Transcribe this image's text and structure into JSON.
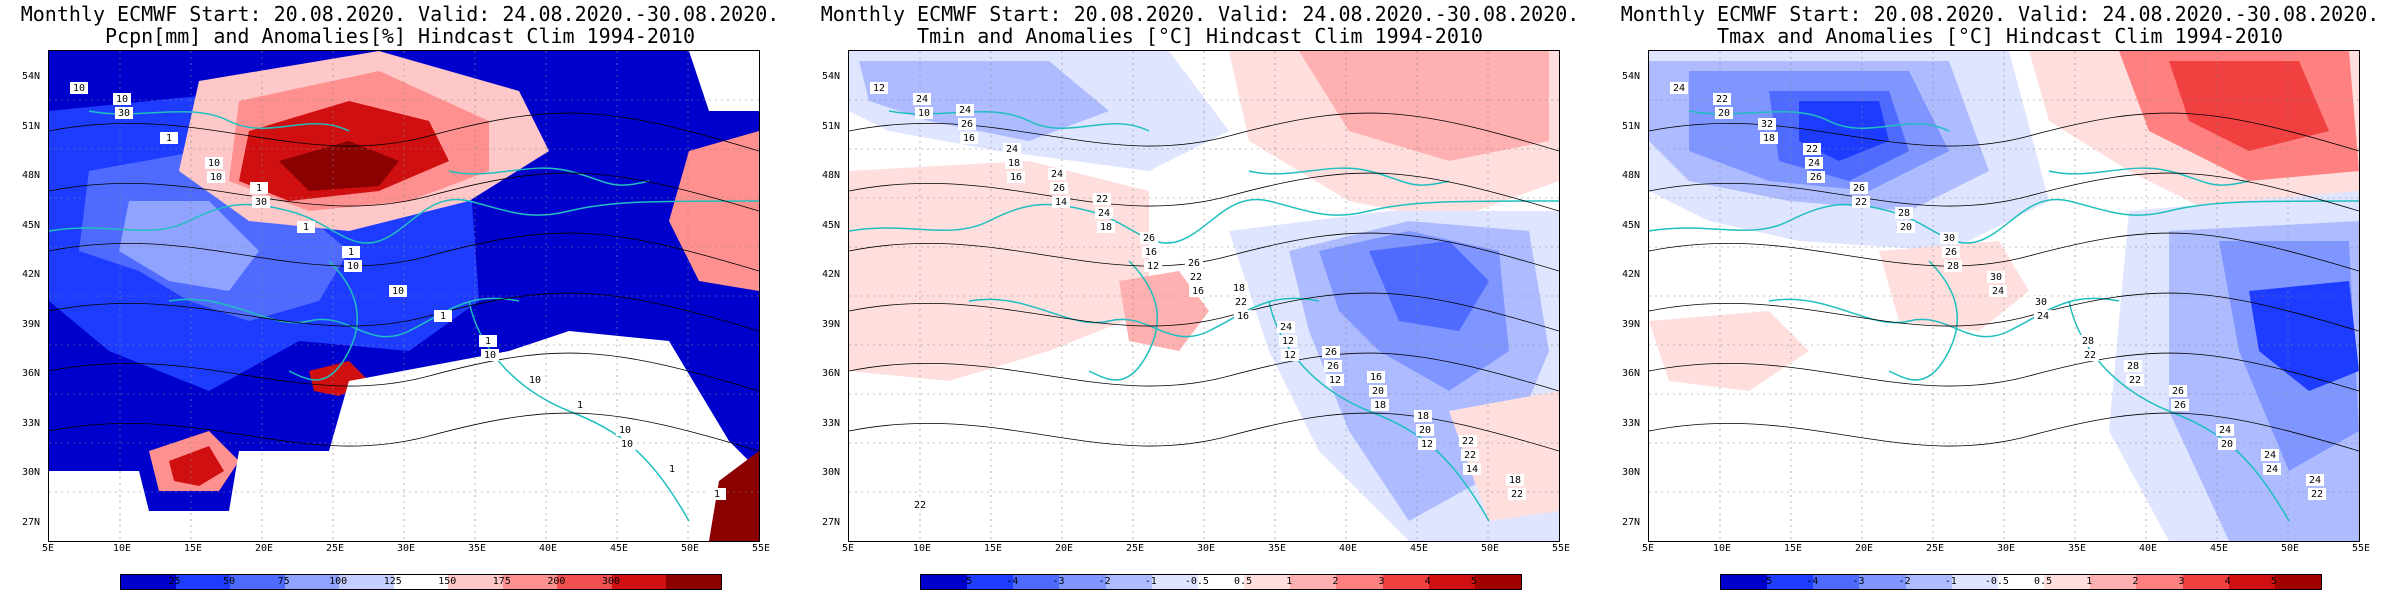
{
  "panels": [
    {
      "id": "pcpn",
      "title_line1": "Monthly ECMWF Start: 20.08.2020. Valid: 24.08.2020.-30.08.2020.",
      "title_line2": "Pcpn[mm] and Anomalies[%] Hindcast Clim 1994-2010",
      "lat_labels": [
        "54N",
        "51N",
        "48N",
        "45N",
        "42N",
        "39N",
        "36N",
        "33N",
        "30N",
        "27N"
      ],
      "lon_labels": [
        "5E",
        "10E",
        "15E",
        "20E",
        "25E",
        "30E",
        "35E",
        "40E",
        "45E",
        "50E",
        "55E"
      ],
      "colorbar_labels": [
        "25",
        "50",
        "75",
        "100",
        "125",
        "150",
        "175",
        "200",
        "300"
      ],
      "colorbar_colors": [
        "#0000cd",
        "#1e3cff",
        "#4f6bff",
        "#8fa3ff",
        "#c5cfff",
        "#ffffff",
        "#ffc8c8",
        "#ff9090",
        "#f05050",
        "#d01010",
        "#8b0000"
      ],
      "contour_labels": [
        "10",
        "10",
        "10",
        "10",
        "10",
        "30",
        "30",
        "10",
        "10",
        "1",
        "1",
        "1",
        "1",
        "1",
        "1",
        "10",
        "1",
        "1",
        "10",
        "10",
        "1"
      ]
    },
    {
      "id": "tmin",
      "title_line1": "Monthly ECMWF Start: 20.08.2020. Valid: 24.08.2020.-30.08.2020.",
      "title_line2": "Tmin and Anomalies [°C] Hindcast Clim 1994-2010",
      "lat_labels": [
        "54N",
        "51N",
        "48N",
        "45N",
        "42N",
        "39N",
        "36N",
        "33N",
        "30N",
        "27N"
      ],
      "lon_labels": [
        "5E",
        "10E",
        "15E",
        "20E",
        "25E",
        "30E",
        "35E",
        "40E",
        "45E",
        "50E",
        "55E"
      ],
      "colorbar_labels": [
        "-5",
        "-4",
        "-3",
        "-2",
        "-1",
        "-0.5",
        "0.5",
        "1",
        "2",
        "3",
        "4",
        "5"
      ],
      "colorbar_colors": [
        "#0000cd",
        "#1e3cff",
        "#4f6bff",
        "#7f95ff",
        "#aebcff",
        "#dfe5ff",
        "#ffffff",
        "#ffdede",
        "#ffb0b0",
        "#ff8080",
        "#f04040",
        "#d01010",
        "#a00000"
      ],
      "contour_labels": [
        "12",
        "16",
        "12",
        "12",
        "12",
        "10",
        "14",
        "16",
        "12",
        "14",
        "16",
        "18",
        "16",
        "18",
        "22",
        "18",
        "16",
        "12",
        "20",
        "24",
        "26",
        "22",
        "26",
        "22",
        "26",
        "24",
        "22",
        "20",
        "18",
        "24",
        "26",
        "24",
        "18",
        "22",
        "24",
        "26",
        "26",
        "22",
        "24",
        "22",
        "18",
        "16"
      ]
    },
    {
      "id": "tmax",
      "title_line1": "Monthly ECMWF Start: 20.08.2020. Valid: 24.08.2020.-30.08.2020.",
      "title_line2": "Tmax and Anomalies [°C] Hindcast Clim 1994-2010",
      "lat_labels": [
        "54N",
        "51N",
        "48N",
        "45N",
        "42N",
        "39N",
        "36N",
        "33N",
        "30N",
        "27N"
      ],
      "lon_labels": [
        "5E",
        "10E",
        "15E",
        "20E",
        "25E",
        "30E",
        "35E",
        "40E",
        "45E",
        "50E",
        "55E"
      ],
      "colorbar_labels": [
        "-5",
        "-4",
        "-3",
        "-2",
        "-1",
        "-0.5",
        "0.5",
        "1",
        "2",
        "3",
        "4",
        "5"
      ],
      "colorbar_colors": [
        "#0000cd",
        "#1e3cff",
        "#4f6bff",
        "#7f95ff",
        "#aebcff",
        "#dfe5ff",
        "#ffffff",
        "#ffdede",
        "#ffb0b0",
        "#ff8080",
        "#f04040",
        "#d01010",
        "#a00000"
      ],
      "contour_labels": [
        "24",
        "26",
        "28",
        "22",
        "20",
        "20",
        "22",
        "24",
        "22",
        "24",
        "18",
        "20",
        "24",
        "26",
        "22",
        "24",
        "26",
        "28",
        "24",
        "22",
        "26",
        "30",
        "28",
        "24",
        "32",
        "28",
        "30",
        "26",
        "24",
        "22",
        "30"
      ]
    }
  ]
}
